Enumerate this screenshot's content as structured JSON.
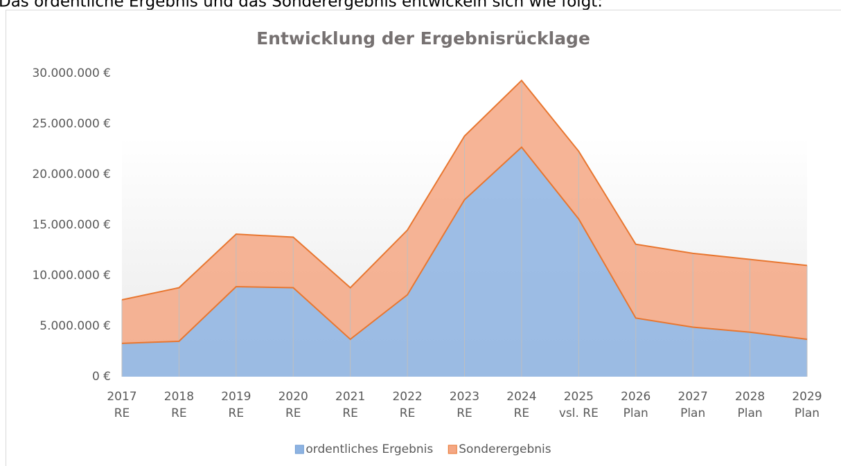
{
  "intro": "Das ordentliche Ergebnis und das Sonderergebnis entwickeln sich wie folgt:",
  "chart_data": {
    "type": "stacked_area",
    "title": "Entwicklung der Ergebnisrücklage",
    "categories": [
      [
        "2017",
        "RE"
      ],
      [
        "2018",
        "RE"
      ],
      [
        "2019",
        "RE"
      ],
      [
        "2020",
        "RE"
      ],
      [
        "2021",
        "RE"
      ],
      [
        "2022",
        "RE"
      ],
      [
        "2023",
        "RE"
      ],
      [
        "2024",
        "RE"
      ],
      [
        "2025",
        "vsl. RE"
      ],
      [
        "2026",
        "Plan"
      ],
      [
        "2027",
        "Plan"
      ],
      [
        "2028",
        "Plan"
      ],
      [
        "2029",
        "Plan"
      ]
    ],
    "series": [
      {
        "name": "ordentliches Ergebnis",
        "color": "#8db3e2",
        "values": [
          3300000,
          3500000,
          8900000,
          8800000,
          3700000,
          8100000,
          17500000,
          22700000,
          15600000,
          5800000,
          4900000,
          4400000,
          3700000
        ]
      },
      {
        "name": "Sonderergebnis",
        "color": "#f4a784",
        "values": [
          4300000,
          5300000,
          5200000,
          5000000,
          5100000,
          6400000,
          6300000,
          6600000,
          6700000,
          7300000,
          7300000,
          7200000,
          7300000
        ]
      }
    ],
    "line_color": "#e8762f",
    "ylim": [
      0,
      30000000
    ],
    "yticks": [
      {
        "value": 0,
        "label": "0 €"
      },
      {
        "value": 5000000,
        "label": "5.000.000 €"
      },
      {
        "value": 10000000,
        "label": "10.000.000 €"
      },
      {
        "value": 15000000,
        "label": "15.000.000 €"
      },
      {
        "value": 20000000,
        "label": "20.000.000 €"
      },
      {
        "value": 25000000,
        "label": "25.000.000 €"
      },
      {
        "value": 30000000,
        "label": "30.000.000 €"
      }
    ],
    "legend": "bottom"
  }
}
